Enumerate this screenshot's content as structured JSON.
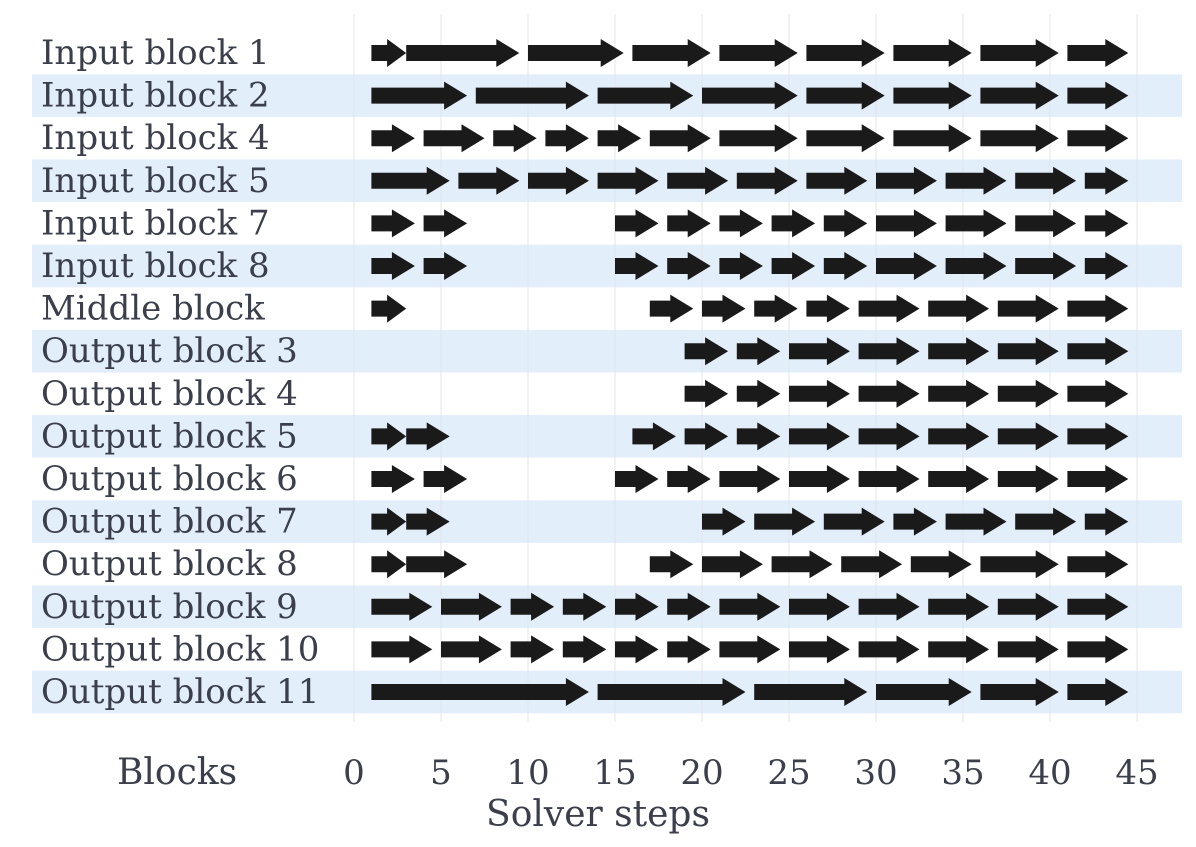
{
  "chart_data": {
    "type": "timeline",
    "xlabel": "Solver steps",
    "ylabel_header": "Blocks",
    "xlim": [
      0,
      45
    ],
    "xticks": [
      0,
      5,
      10,
      15,
      20,
      25,
      30,
      35,
      40,
      45
    ],
    "grid": true,
    "row_stripe_color": "#e3eefb",
    "arrow_color": "#1a1a1a",
    "rows": [
      {
        "name": "Input block 1",
        "intervals": [
          [
            1,
            3
          ],
          [
            3,
            9.5
          ],
          [
            10,
            15.5
          ],
          [
            16,
            20.5
          ],
          [
            21,
            25.5
          ],
          [
            26,
            30.5
          ],
          [
            31,
            35.5
          ],
          [
            36,
            40.5
          ],
          [
            41,
            44.5
          ]
        ]
      },
      {
        "name": "Input block 2",
        "intervals": [
          [
            1,
            6.5
          ],
          [
            7,
            13.5
          ],
          [
            14,
            19.5
          ],
          [
            20,
            25.5
          ],
          [
            26,
            30.5
          ],
          [
            31,
            35.5
          ],
          [
            36,
            40.5
          ],
          [
            41,
            44.5
          ]
        ]
      },
      {
        "name": "Input block 4",
        "intervals": [
          [
            1,
            3.5
          ],
          [
            4,
            7.5
          ],
          [
            8,
            10.5
          ],
          [
            11,
            13.5
          ],
          [
            14,
            16.5
          ],
          [
            17,
            20.5
          ],
          [
            21,
            25.5
          ],
          [
            26,
            30.5
          ],
          [
            31,
            35.5
          ],
          [
            36,
            40.5
          ],
          [
            41,
            44.5
          ]
        ]
      },
      {
        "name": "Input block 5",
        "intervals": [
          [
            1,
            5.5
          ],
          [
            6,
            9.5
          ],
          [
            10,
            13.5
          ],
          [
            14,
            17.5
          ],
          [
            18,
            21.5
          ],
          [
            22,
            25.5
          ],
          [
            26,
            29.5
          ],
          [
            30,
            33.5
          ],
          [
            34,
            37.5
          ],
          [
            38,
            41.5
          ],
          [
            42,
            44.5
          ]
        ]
      },
      {
        "name": "Input block 7",
        "intervals": [
          [
            1,
            3.5
          ],
          [
            4,
            6.5
          ],
          [
            15,
            17.5
          ],
          [
            18,
            20.5
          ],
          [
            21,
            23.5
          ],
          [
            24,
            26.5
          ],
          [
            27,
            29.5
          ],
          [
            30,
            33.5
          ],
          [
            34,
            37.5
          ],
          [
            38,
            41.5
          ],
          [
            42,
            44.5
          ]
        ]
      },
      {
        "name": "Input block 8",
        "intervals": [
          [
            1,
            3.5
          ],
          [
            4,
            6.5
          ],
          [
            15,
            17.5
          ],
          [
            18,
            20.5
          ],
          [
            21,
            23.5
          ],
          [
            24,
            26.5
          ],
          [
            27,
            29.5
          ],
          [
            30,
            33.5
          ],
          [
            34,
            37.5
          ],
          [
            38,
            41.5
          ],
          [
            42,
            44.5
          ]
        ]
      },
      {
        "name": "Middle block",
        "intervals": [
          [
            1,
            3
          ],
          [
            17,
            19.5
          ],
          [
            20,
            22.5
          ],
          [
            23,
            25.5
          ],
          [
            26,
            28.5
          ],
          [
            29,
            32.5
          ],
          [
            33,
            36.5
          ],
          [
            37,
            40.5
          ],
          [
            41,
            44.5
          ]
        ]
      },
      {
        "name": "Output block 3",
        "intervals": [
          [
            19,
            21.5
          ],
          [
            22,
            24.5
          ],
          [
            25,
            28.5
          ],
          [
            29,
            32.5
          ],
          [
            33,
            36.5
          ],
          [
            37,
            40.5
          ],
          [
            41,
            44.5
          ]
        ]
      },
      {
        "name": "Output block 4",
        "intervals": [
          [
            19,
            21.5
          ],
          [
            22,
            24.5
          ],
          [
            25,
            28.5
          ],
          [
            29,
            32.5
          ],
          [
            33,
            36.5
          ],
          [
            37,
            40.5
          ],
          [
            41,
            44.5
          ]
        ]
      },
      {
        "name": "Output block 5",
        "intervals": [
          [
            1,
            3
          ],
          [
            3,
            5.5
          ],
          [
            16,
            18.5
          ],
          [
            19,
            21.5
          ],
          [
            22,
            24.5
          ],
          [
            25,
            28.5
          ],
          [
            29,
            32.5
          ],
          [
            33,
            36.5
          ],
          [
            37,
            40.5
          ],
          [
            41,
            44.5
          ]
        ]
      },
      {
        "name": "Output block 6",
        "intervals": [
          [
            1,
            3.5
          ],
          [
            4,
            6.5
          ],
          [
            15,
            17.5
          ],
          [
            18,
            20.5
          ],
          [
            21,
            24.5
          ],
          [
            25,
            28.5
          ],
          [
            29,
            32.5
          ],
          [
            33,
            36.5
          ],
          [
            37,
            40.5
          ],
          [
            41,
            44.5
          ]
        ]
      },
      {
        "name": "Output block 7",
        "intervals": [
          [
            1,
            3
          ],
          [
            3,
            5.5
          ],
          [
            20,
            22.5
          ],
          [
            23,
            26.5
          ],
          [
            27,
            30.5
          ],
          [
            31,
            33.5
          ],
          [
            34,
            37.5
          ],
          [
            38,
            41.5
          ],
          [
            42,
            44.5
          ]
        ]
      },
      {
        "name": "Output block 8",
        "intervals": [
          [
            1,
            3
          ],
          [
            3,
            6.5
          ],
          [
            17,
            19.5
          ],
          [
            20,
            23.5
          ],
          [
            24,
            27.5
          ],
          [
            28,
            31.5
          ],
          [
            32,
            35.5
          ],
          [
            36,
            40.5
          ],
          [
            41,
            44.5
          ]
        ]
      },
      {
        "name": "Output block 9",
        "intervals": [
          [
            1,
            4.5
          ],
          [
            5,
            8.5
          ],
          [
            9,
            11.5
          ],
          [
            12,
            14.5
          ],
          [
            15,
            17.5
          ],
          [
            18,
            20.5
          ],
          [
            21,
            24.5
          ],
          [
            25,
            28.5
          ],
          [
            29,
            32.5
          ],
          [
            33,
            36.5
          ],
          [
            37,
            40.5
          ],
          [
            41,
            44.5
          ]
        ]
      },
      {
        "name": "Output block 10",
        "intervals": [
          [
            1,
            4.5
          ],
          [
            5,
            8.5
          ],
          [
            9,
            11.5
          ],
          [
            12,
            14.5
          ],
          [
            15,
            17.5
          ],
          [
            18,
            20.5
          ],
          [
            21,
            24.5
          ],
          [
            25,
            28.5
          ],
          [
            29,
            32.5
          ],
          [
            33,
            36.5
          ],
          [
            37,
            40.5
          ],
          [
            41,
            44.5
          ]
        ]
      },
      {
        "name": "Output block 11",
        "intervals": [
          [
            1,
            13.5
          ],
          [
            14,
            22.5
          ],
          [
            23,
            29.5
          ],
          [
            30,
            35.5
          ],
          [
            36,
            40.5
          ],
          [
            41,
            44.5
          ]
        ]
      }
    ]
  }
}
